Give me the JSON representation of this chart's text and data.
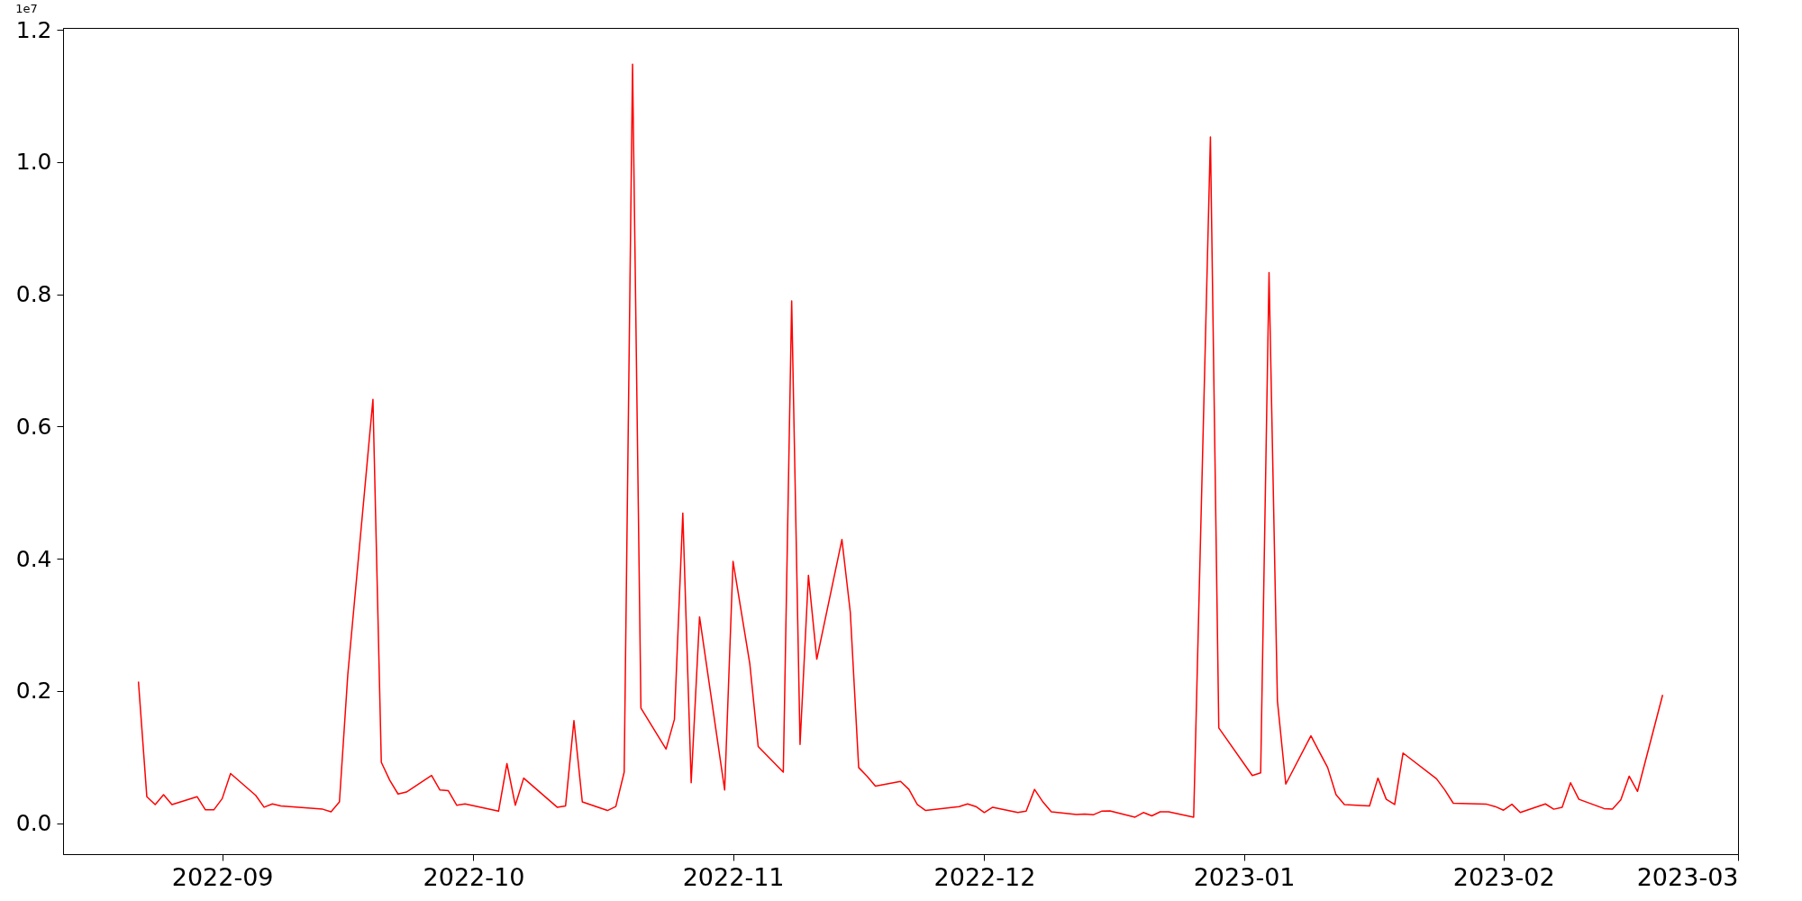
{
  "chart_data": {
    "type": "line",
    "annotations": [
      "1e7"
    ],
    "x": [
      "2022-08-22",
      "2022-08-23",
      "2022-08-24",
      "2022-08-25",
      "2022-08-26",
      "2022-08-29",
      "2022-08-30",
      "2022-08-31",
      "2022-09-01",
      "2022-09-02",
      "2022-09-05",
      "2022-09-06",
      "2022-09-07",
      "2022-09-08",
      "2022-09-13",
      "2022-09-14",
      "2022-09-15",
      "2022-09-16",
      "2022-09-19",
      "2022-09-20",
      "2022-09-21",
      "2022-09-22",
      "2022-09-23",
      "2022-09-26",
      "2022-09-27",
      "2022-09-28",
      "2022-09-29",
      "2022-09-30",
      "2022-10-04",
      "2022-10-05",
      "2022-10-06",
      "2022-10-07",
      "2022-10-11",
      "2022-10-12",
      "2022-10-13",
      "2022-10-14",
      "2022-10-17",
      "2022-10-18",
      "2022-10-19",
      "2022-10-20",
      "2022-10-21",
      "2022-10-24",
      "2022-10-25",
      "2022-10-26",
      "2022-10-27",
      "2022-10-28",
      "2022-10-31",
      "2022-11-01",
      "2022-11-03",
      "2022-11-04",
      "2022-11-07",
      "2022-11-08",
      "2022-11-09",
      "2022-11-10",
      "2022-11-11",
      "2022-11-14",
      "2022-11-15",
      "2022-11-16",
      "2022-11-17",
      "2022-11-18",
      "2022-11-21",
      "2022-11-22",
      "2022-11-23",
      "2022-11-24",
      "2022-11-28",
      "2022-11-29",
      "2022-11-30",
      "2022-12-01",
      "2022-12-02",
      "2022-12-05",
      "2022-12-06",
      "2022-12-07",
      "2022-12-08",
      "2022-12-09",
      "2022-12-12",
      "2022-12-13",
      "2022-12-14",
      "2022-12-15",
      "2022-12-16",
      "2022-12-19",
      "2022-12-20",
      "2022-12-21",
      "2022-12-22",
      "2022-12-23",
      "2022-12-26",
      "2022-12-28",
      "2022-12-29",
      "2023-01-02",
      "2023-01-03",
      "2023-01-04",
      "2023-01-05",
      "2023-01-06",
      "2023-01-09",
      "2023-01-10",
      "2023-01-11",
      "2023-01-12",
      "2023-01-13",
      "2023-01-16",
      "2023-01-17",
      "2023-01-18",
      "2023-01-19",
      "2023-01-20",
      "2023-01-24",
      "2023-01-25",
      "2023-01-26",
      "2023-01-30",
      "2023-01-31",
      "2023-02-01",
      "2023-02-02",
      "2023-02-03",
      "2023-02-06",
      "2023-02-07",
      "2023-02-08",
      "2023-02-09",
      "2023-02-10",
      "2023-02-13",
      "2023-02-14",
      "2023-02-15",
      "2023-02-16",
      "2023-02-17",
      "2023-02-20"
    ],
    "series": [
      {
        "color": "#ff0000",
        "values": [
          0.214,
          0.04,
          0.028,
          0.043,
          0.028,
          0.04,
          0.02,
          0.02,
          0.037,
          0.075,
          0.042,
          0.024,
          0.029,
          0.026,
          0.021,
          0.017,
          0.032,
          0.225,
          0.641,
          0.092,
          0.065,
          0.044,
          0.047,
          0.072,
          0.05,
          0.049,
          0.027,
          0.029,
          0.018,
          0.09,
          0.027,
          0.068,
          0.024,
          0.026,
          0.155,
          0.032,
          0.019,
          0.025,
          0.077,
          1.148,
          0.174,
          0.112,
          0.157,
          0.469,
          0.061,
          0.312,
          0.05,
          0.396,
          0.241,
          0.116,
          0.077,
          0.79,
          0.119,
          0.375,
          0.248,
          0.429,
          0.319,
          0.084,
          0.071,
          0.056,
          0.063,
          0.051,
          0.028,
          0.019,
          0.025,
          0.029,
          0.025,
          0.016,
          0.024,
          0.016,
          0.018,
          0.051,
          0.032,
          0.017,
          0.013,
          0.0135,
          0.0125,
          0.018,
          0.0185,
          0.009,
          0.016,
          0.011,
          0.017,
          0.017,
          0.009,
          1.038,
          0.144,
          0.072,
          0.076,
          0.833,
          0.185,
          0.059,
          0.132,
          0.108,
          0.084,
          0.043,
          0.028,
          0.026,
          0.068,
          0.036,
          0.028,
          0.106,
          0.067,
          0.05,
          0.03,
          0.0285,
          0.025,
          0.0195,
          0.0285,
          0.016,
          0.029,
          0.021,
          0.024,
          0.061,
          0.036,
          0.022,
          0.021,
          0.035,
          0.071,
          0.048,
          0.194
        ]
      }
    ],
    "xlim": [
      "2022-08-13",
      "2023-03-01"
    ],
    "xticks": [
      {
        "value": "2022-09-01",
        "label": "2022-09"
      },
      {
        "value": "2022-10-01",
        "label": "2022-10"
      },
      {
        "value": "2022-11-01",
        "label": "2022-11"
      },
      {
        "value": "2022-12-01",
        "label": "2022-12"
      },
      {
        "value": "2023-01-01",
        "label": "2023-01"
      },
      {
        "value": "2023-02-01",
        "label": "2023-02"
      },
      {
        "value": "2023-03-01",
        "label": "2023-03"
      }
    ],
    "ylim": [
      -0.047,
      1.203
    ],
    "yticks": [
      {
        "value": 0,
        "label": "0.0"
      },
      {
        "value": 0.2,
        "label": "0.2"
      },
      {
        "value": 0.4,
        "label": "0.4"
      },
      {
        "value": 0.6,
        "label": "0.6"
      },
      {
        "value": 0.8,
        "label": "0.8"
      },
      {
        "value": 1.0,
        "label": "1.0"
      },
      {
        "value": 1.2,
        "label": "1.2"
      }
    ],
    "grid": false
  }
}
